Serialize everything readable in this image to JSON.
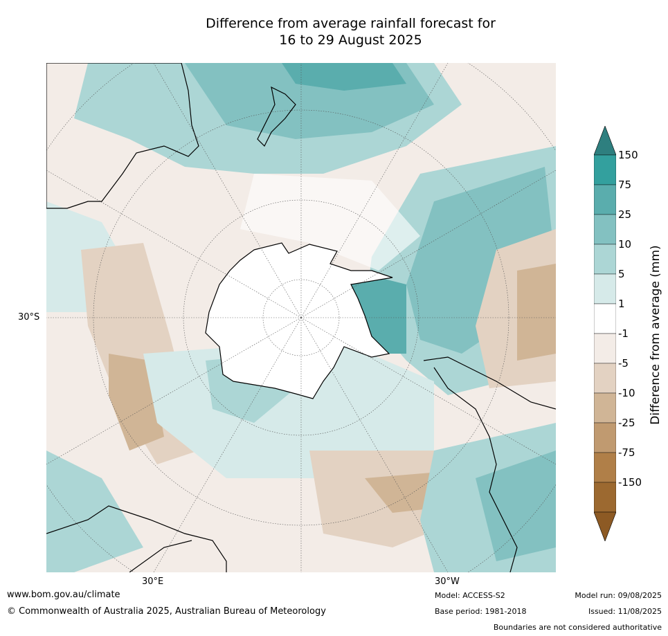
{
  "title_line1": "Difference from average rainfall forecast for",
  "title_line2": "16 to 29 August 2025",
  "map_labels": {
    "lat_30s": "30°S",
    "lon_30e": "30°E",
    "lon_30w": "30°W"
  },
  "colorbar": {
    "label": "Difference from average (mm)",
    "ticks": [
      "150",
      "75",
      "25",
      "10",
      "5",
      "1",
      "-1",
      "-5",
      "-10",
      "-25",
      "-75",
      "-150"
    ],
    "colors": [
      "#2e7f7f",
      "#33a09e",
      "#5aadad",
      "#83c1c1",
      "#acd6d5",
      "#d6eae9",
      "#ffffff",
      "#f3ece7",
      "#e3d2c2",
      "#d0b596",
      "#c09a70",
      "#b07f48",
      "#9c6930",
      "#8d5a24"
    ]
  },
  "footer": {
    "website": "www.bom.gov.au/climate",
    "copyright": "© Commonwealth of Australia 2025, Australian Bureau of Meteorology",
    "model": "Model: ACCESS-S2",
    "base_period": "Base period: 1981-2018",
    "model_run": "Model run: 09/08/2025",
    "issued": "Issued: 11/08/2025",
    "disclaimer": "Boundaries are not considered authoritative"
  }
}
